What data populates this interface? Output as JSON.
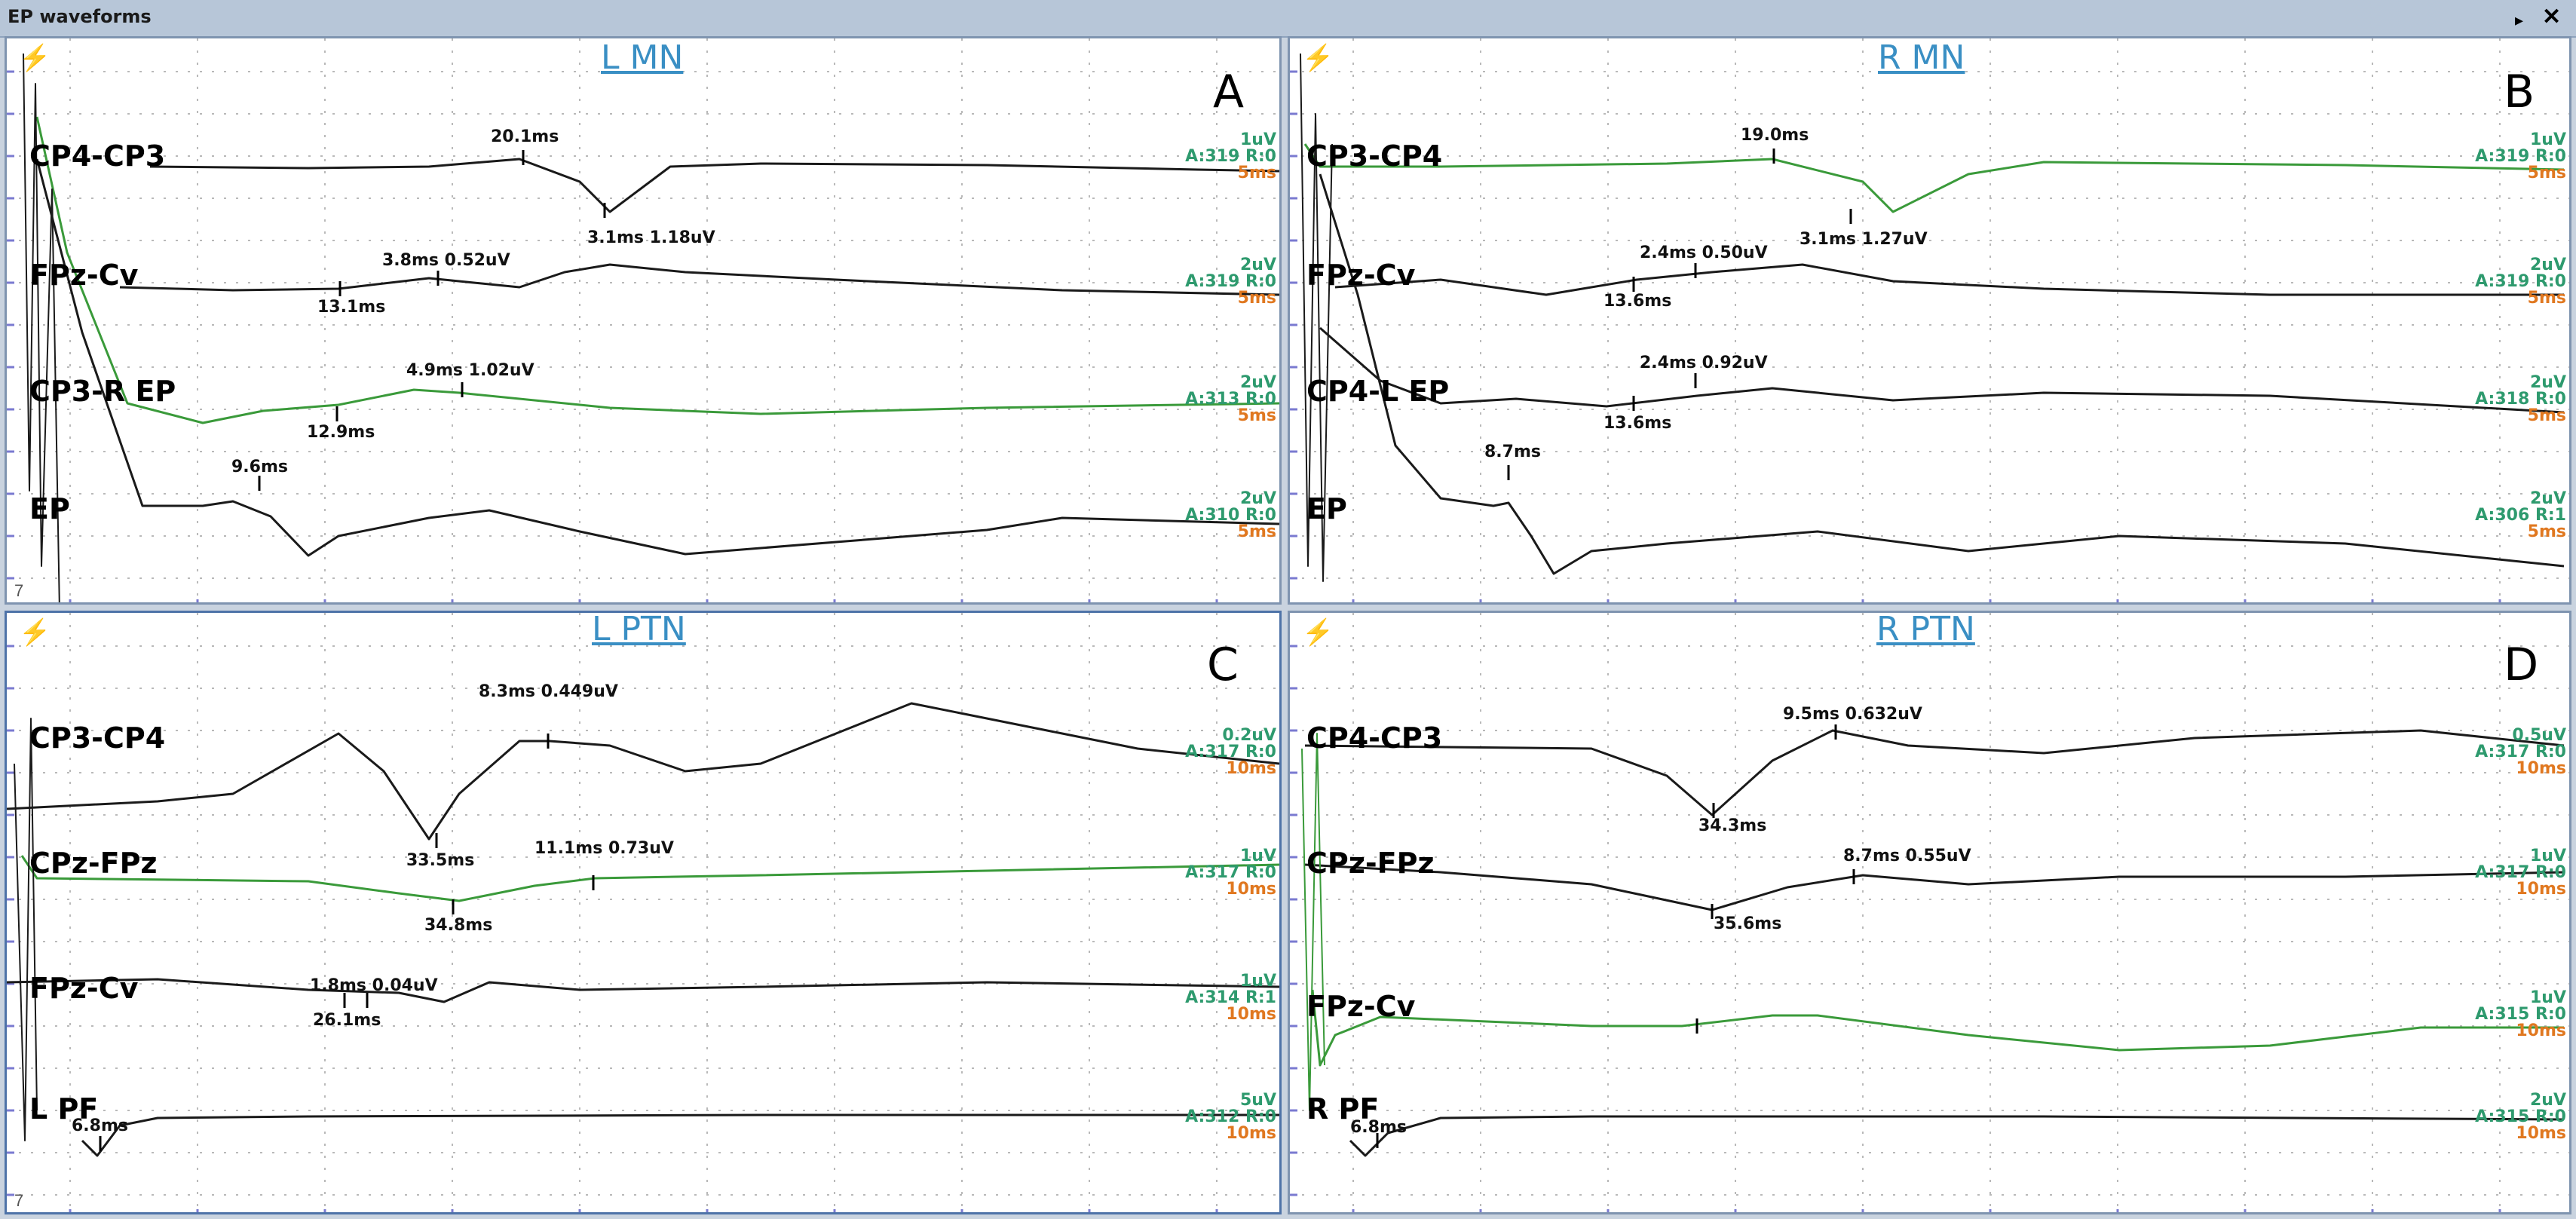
{
  "window": {
    "title": "EP waveforms"
  },
  "colors": {
    "trace_black": "#1a1a1a",
    "trace_green": "#3a9a3a",
    "title_blue": "#3a8fc4",
    "scale_green": "#2e9a6e",
    "time_orange": "#e07820",
    "grid": "#b9b9b9"
  },
  "panels": [
    {
      "title": "L MN",
      "letter": "A",
      "channels": [
        {
          "label": "CP4-CP3",
          "sens": "1uV",
          "avg": "A:319 R:0",
          "time": "5ms"
        },
        {
          "label": "FPz-Cv",
          "sens": "2uV",
          "avg": "A:319 R:0",
          "time": "5ms"
        },
        {
          "label": "CP3-R EP",
          "sens": "2uV",
          "avg": "A:313 R:0",
          "time": "5ms"
        },
        {
          "label": "EP",
          "sens": "2uV",
          "avg": "A:310 R:0",
          "time": "5ms"
        }
      ],
      "annotations": [
        "20.1ms",
        "3.1ms 1.18uV",
        "3.8ms 0.52uV",
        "13.1ms",
        "4.9ms 1.02uV",
        "12.9ms",
        "9.6ms"
      ]
    },
    {
      "title": "R MN",
      "letter": "B",
      "channels": [
        {
          "label": "CP3-CP4",
          "sens": "1uV",
          "avg": "A:319 R:0",
          "time": "5ms"
        },
        {
          "label": "FPz-Cv",
          "sens": "2uV",
          "avg": "A:319 R:0",
          "time": "5ms"
        },
        {
          "label": "CP4-L EP",
          "sens": "2uV",
          "avg": "A:318 R:0",
          "time": "5ms"
        },
        {
          "label": "EP",
          "sens": "2uV",
          "avg": "A:306 R:1",
          "time": "5ms"
        }
      ],
      "annotations": [
        "19.0ms",
        "3.1ms 1.27uV",
        "2.4ms 0.50uV",
        "13.6ms",
        "2.4ms 0.92uV",
        "13.6ms",
        "8.7ms"
      ]
    },
    {
      "title": "L PTN",
      "letter": "C",
      "channels": [
        {
          "label": "CP3-CP4",
          "sens": "0.2uV",
          "avg": "A:317 R:0",
          "time": "10ms"
        },
        {
          "label": "CPz-FPz",
          "sens": "1uV",
          "avg": "A:317 R:0",
          "time": "10ms"
        },
        {
          "label": "FPz-Cv",
          "sens": "1uV",
          "avg": "A:314 R:1",
          "time": "10ms"
        },
        {
          "label": "L PF",
          "sens": "5uV",
          "avg": "A:312 R:0",
          "time": "10ms"
        }
      ],
      "annotations": [
        "8.3ms 0.449uV",
        "33.5ms",
        "11.1ms 0.73uV",
        "34.8ms",
        "1.8ms 0.04uV",
        "26.1ms",
        "6.8ms"
      ]
    },
    {
      "title": "R PTN",
      "letter": "D",
      "channels": [
        {
          "label": "CP4-CP3",
          "sens": "0.5uV",
          "avg": "A:317 R:0",
          "time": "10ms"
        },
        {
          "label": "CPz-FPz",
          "sens": "1uV",
          "avg": "A:317 R:0",
          "time": "10ms"
        },
        {
          "label": "FPz-Cv",
          "sens": "1uV",
          "avg": "A:315 R:0",
          "time": "10ms"
        },
        {
          "label": "R PF",
          "sens": "2uV",
          "avg": "A:315 R:0",
          "time": "10ms"
        }
      ],
      "annotations": [
        "9.5ms 0.632uV",
        "34.3ms",
        "8.7ms 0.55uV",
        "35.6ms",
        "6.8ms"
      ]
    }
  ]
}
